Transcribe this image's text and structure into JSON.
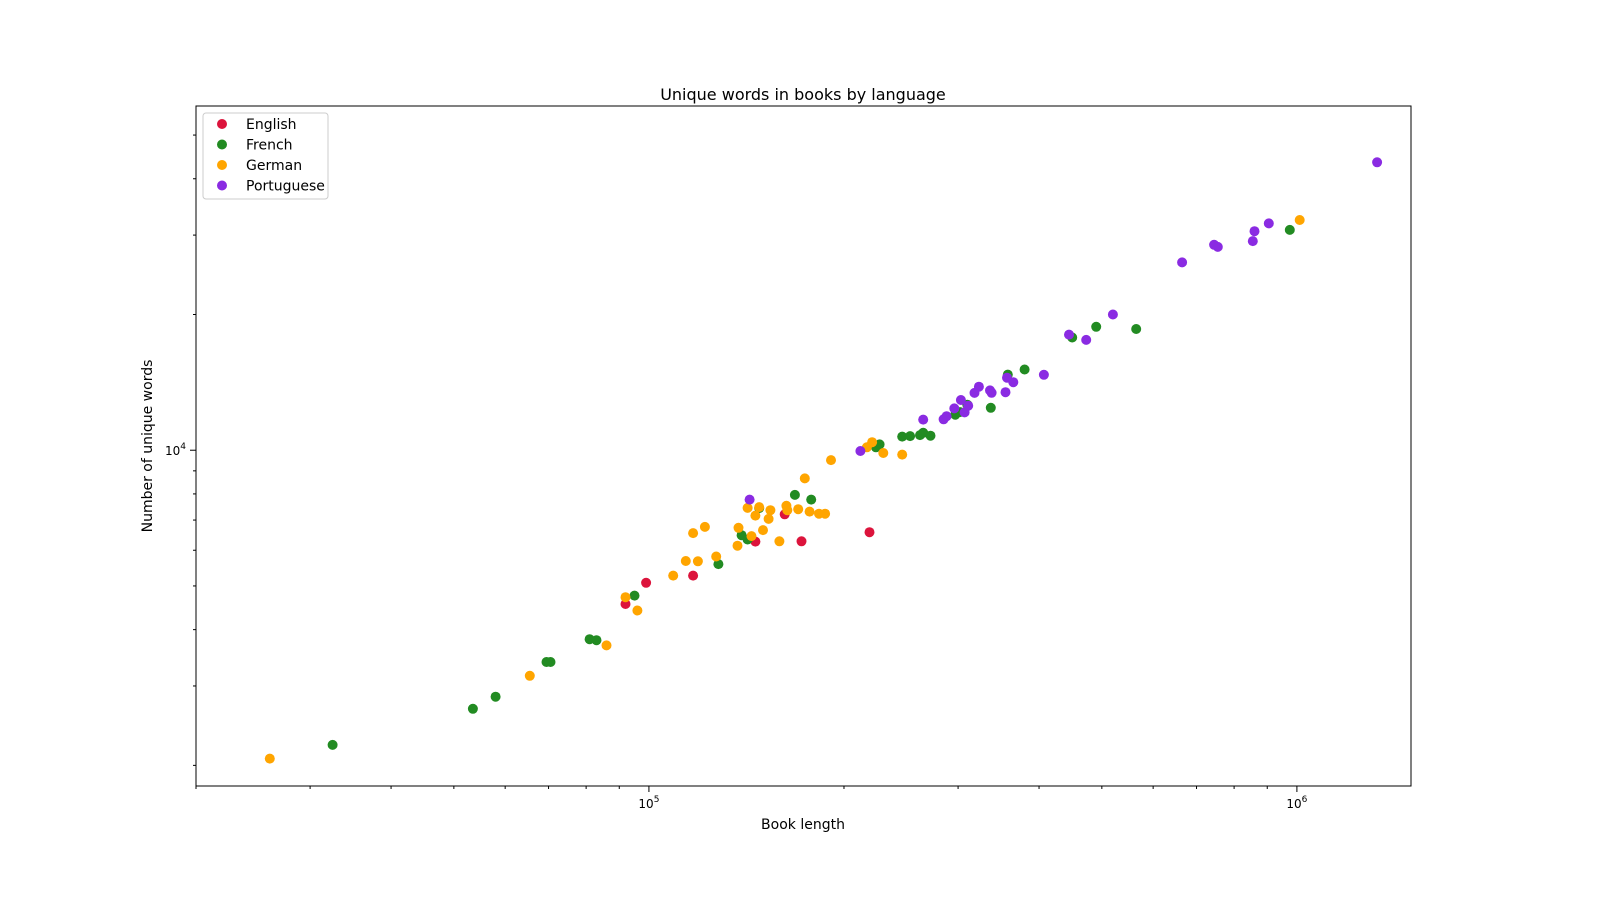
{
  "chart_data": {
    "type": "scatter",
    "title": "Unique words in books by language",
    "xlabel": "Book length",
    "ylabel": "Number of unique words",
    "xscale": "log",
    "yscale": "log",
    "xlim": [
      20000,
      1500000
    ],
    "ylim": [
      1800,
      58000
    ],
    "xticks": [
      {
        "value": 100000,
        "base": "10",
        "exp": "5"
      },
      {
        "value": 1000000,
        "base": "10",
        "exp": "6"
      }
    ],
    "yticks": [
      {
        "value": 10000,
        "base": "10",
        "exp": "4"
      }
    ],
    "grid": false,
    "legend_position": "top-left",
    "series": [
      {
        "name": "English",
        "color": "#dc143c",
        "points": [
          [
            92000,
            4560
          ],
          [
            99000,
            5080
          ],
          [
            117000,
            5270
          ],
          [
            146000,
            6270
          ],
          [
            162000,
            7210
          ],
          [
            172000,
            6280
          ],
          [
            219000,
            6580
          ]
        ]
      },
      {
        "name": "French",
        "color": "#228b22",
        "points": [
          [
            32500,
            2220
          ],
          [
            53500,
            2670
          ],
          [
            58000,
            2840
          ],
          [
            69500,
            3390
          ],
          [
            70500,
            3390
          ],
          [
            81000,
            3810
          ],
          [
            83000,
            3790
          ],
          [
            95000,
            4760
          ],
          [
            128000,
            5590
          ],
          [
            139000,
            6480
          ],
          [
            142000,
            6340
          ],
          [
            148000,
            7440
          ],
          [
            168000,
            7960
          ],
          [
            178000,
            7770
          ],
          [
            224000,
            10150
          ],
          [
            227000,
            10300
          ],
          [
            246000,
            10720
          ],
          [
            253000,
            10750
          ],
          [
            262000,
            10800
          ],
          [
            265000,
            10930
          ],
          [
            272000,
            10770
          ],
          [
            297000,
            11990
          ],
          [
            302000,
            12150
          ],
          [
            310000,
            12620
          ],
          [
            337000,
            12420
          ],
          [
            358000,
            14710
          ],
          [
            380000,
            15100
          ],
          [
            450000,
            17780
          ],
          [
            490000,
            18780
          ],
          [
            565000,
            18570
          ],
          [
            975000,
            30800
          ]
        ]
      },
      {
        "name": "German",
        "color": "#ffa500",
        "points": [
          [
            26000,
            2070
          ],
          [
            65500,
            3160
          ],
          [
            86000,
            3690
          ],
          [
            92000,
            4720
          ],
          [
            96000,
            4410
          ],
          [
            109000,
            5270
          ],
          [
            114000,
            5680
          ],
          [
            117000,
            6550
          ],
          [
            119000,
            5670
          ],
          [
            122000,
            6760
          ],
          [
            127000,
            5810
          ],
          [
            137000,
            6140
          ],
          [
            137500,
            6730
          ],
          [
            142000,
            7450
          ],
          [
            144000,
            6450
          ],
          [
            146000,
            7160
          ],
          [
            148000,
            7480
          ],
          [
            150000,
            6650
          ],
          [
            153000,
            7040
          ],
          [
            154000,
            7360
          ],
          [
            159000,
            6280
          ],
          [
            163000,
            7530
          ],
          [
            163500,
            7360
          ],
          [
            170000,
            7400
          ],
          [
            174000,
            8660
          ],
          [
            177000,
            7310
          ],
          [
            183000,
            7230
          ],
          [
            187000,
            7230
          ],
          [
            191000,
            9510
          ],
          [
            217000,
            10150
          ],
          [
            221000,
            10420
          ],
          [
            230000,
            9860
          ],
          [
            246000,
            9780
          ],
          [
            1010000,
            32400
          ]
        ]
      },
      {
        "name": "Portuguese",
        "color": "#8a2be2",
        "points": [
          [
            143000,
            7770
          ],
          [
            212000,
            9960
          ],
          [
            265000,
            11690
          ],
          [
            285000,
            11710
          ],
          [
            288000,
            11900
          ],
          [
            296000,
            12380
          ],
          [
            303000,
            12920
          ],
          [
            307000,
            12130
          ],
          [
            311000,
            12550
          ],
          [
            318000,
            13400
          ],
          [
            323000,
            13830
          ],
          [
            336000,
            13570
          ],
          [
            338000,
            13410
          ],
          [
            355000,
            13450
          ],
          [
            357000,
            14480
          ],
          [
            365000,
            14150
          ],
          [
            407000,
            14700
          ],
          [
            445000,
            18050
          ],
          [
            473000,
            17570
          ],
          [
            520000,
            20000
          ],
          [
            665000,
            26100
          ],
          [
            745000,
            28550
          ],
          [
            755000,
            28250
          ],
          [
            855000,
            29100
          ],
          [
            860000,
            30600
          ],
          [
            905000,
            31850
          ],
          [
            1330000,
            43500
          ]
        ]
      }
    ]
  }
}
